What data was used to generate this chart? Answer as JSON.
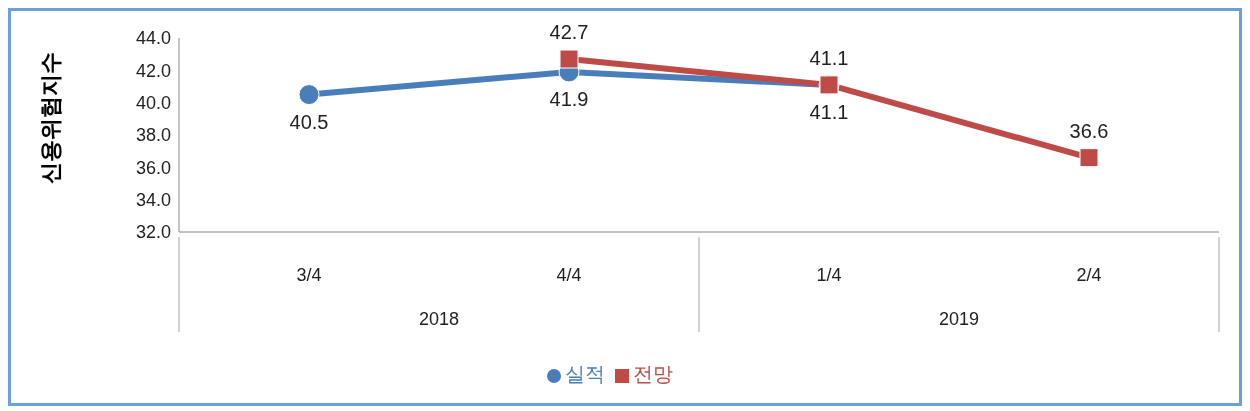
{
  "chart_data": {
    "type": "line",
    "ylabel": "신용위험지수",
    "categories": [
      "3/4",
      "4/4",
      "1/4",
      "2/4"
    ],
    "series": [
      {
        "name": "실적",
        "color": "#4a7ebb",
        "marker": "circle",
        "values": [
          40.5,
          41.9,
          41.1,
          null
        ]
      },
      {
        "name": "전망",
        "color": "#be4b48",
        "marker": "square",
        "values": [
          null,
          42.7,
          41.1,
          36.6
        ]
      }
    ],
    "ylim": [
      32,
      44
    ],
    "yticks": [
      {
        "value": 32,
        "label": "32.0"
      },
      {
        "value": 34,
        "label": "34.0"
      },
      {
        "value": 36,
        "label": "36.0"
      },
      {
        "value": 38,
        "label": "38.0"
      },
      {
        "value": 40,
        "label": "40.0"
      },
      {
        "value": 42,
        "label": "42.0"
      },
      {
        "value": 44,
        "label": "44.0"
      }
    ],
    "annotations": [
      "2018",
      "2019"
    ],
    "data_labels": true,
    "grid": false,
    "legend": "bottom"
  }
}
